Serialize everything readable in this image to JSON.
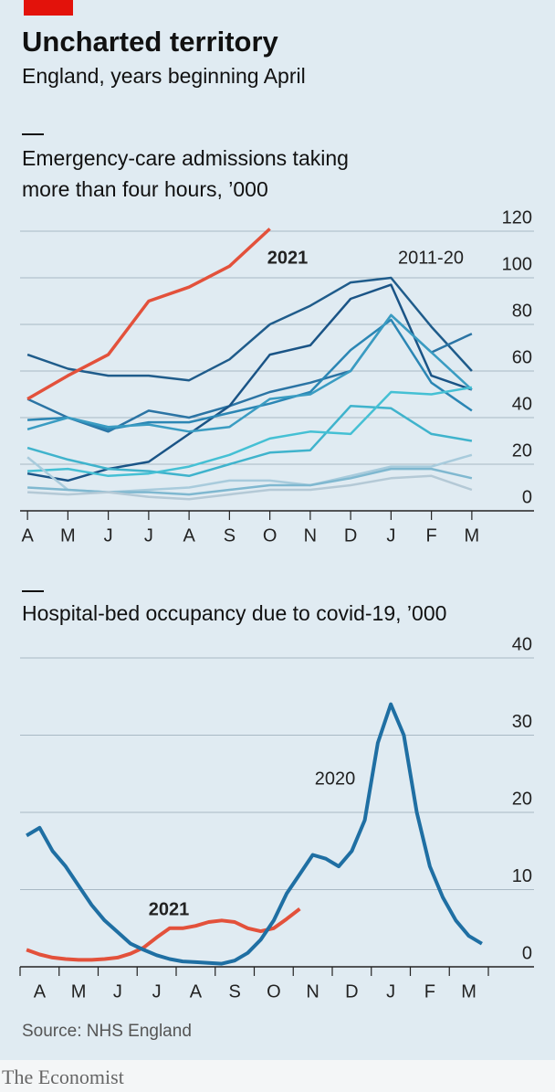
{
  "header": {
    "title": "Uncharted territory",
    "subtitle": "England, years beginning April"
  },
  "chart_data": [
    {
      "type": "line",
      "title": "Emergency-care admissions taking more than four hours, ’000",
      "categories": [
        "A",
        "M",
        "J",
        "J",
        "A",
        "S",
        "O",
        "N",
        "D",
        "J",
        "F",
        "M"
      ],
      "ylim": [
        0,
        120
      ],
      "yticks": [
        0,
        20,
        40,
        60,
        80,
        100,
        120
      ],
      "grid": true,
      "series": [
        {
          "name": "2021",
          "color": "#e3513b",
          "values": [
            48,
            58,
            67,
            90,
            96,
            105,
            121,
            null,
            null,
            null,
            null,
            null
          ]
        },
        {
          "name": "2011-20",
          "lines": [
            {
              "color": "#1f5c8b",
              "values": [
                67,
                61,
                58,
                58,
                56,
                65,
                80,
                88,
                98,
                100,
                79,
                60
              ]
            },
            {
              "color": "#2b74a4",
              "values": [
                48,
                40,
                34,
                43,
                40,
                45,
                51,
                55,
                60,
                84,
                68,
                76
              ]
            },
            {
              "color": "#1a5486",
              "values": [
                16,
                13,
                18,
                21,
                33,
                45,
                67,
                71,
                91,
                97,
                58,
                52
              ]
            },
            {
              "color": "#2b86b4",
              "values": [
                39,
                40,
                35,
                38,
                38,
                42,
                46,
                51,
                69,
                82,
                55,
                43
              ]
            },
            {
              "color": "#3a9cc2",
              "values": [
                35,
                40,
                36,
                37,
                34,
                36,
                48,
                50,
                60,
                84,
                68,
                52
              ]
            },
            {
              "color": "#3fb3cc",
              "values": [
                27,
                22,
                18,
                17,
                15,
                20,
                25,
                26,
                45,
                44,
                33,
                30
              ]
            },
            {
              "color": "#45c0d4",
              "values": [
                17,
                18,
                15,
                16,
                19,
                24,
                31,
                34,
                33,
                51,
                50,
                53
              ]
            },
            {
              "color": "#a8cbdc",
              "values": [
                23,
                9,
                8,
                9,
                10,
                13,
                13,
                11,
                15,
                19,
                19,
                24
              ]
            },
            {
              "color": "#7fb8d0",
              "values": [
                10,
                9,
                8,
                8,
                7,
                9,
                11,
                11,
                14,
                18,
                18,
                14
              ]
            },
            {
              "color": "#b4c9d6",
              "values": [
                8,
                7,
                8,
                6,
                5,
                7,
                9,
                9,
                11,
                14,
                15,
                9
              ]
            }
          ]
        }
      ]
    },
    {
      "type": "line",
      "title": "Hospital-bed occupancy due to covid-19, ’000",
      "categories": [
        null,
        "A",
        null,
        null,
        "M",
        null,
        null,
        "J",
        null,
        null,
        "J",
        null,
        null,
        "A",
        null,
        null,
        "S",
        null,
        null,
        "O",
        null,
        null,
        "N",
        null,
        null,
        "D",
        null,
        null,
        "J",
        null,
        null,
        "F",
        null,
        null,
        "M",
        null
      ],
      "ylim": [
        0,
        40
      ],
      "yticks": [
        0,
        10,
        20,
        30,
        40
      ],
      "grid": true,
      "series": [
        {
          "name": "2020",
          "color": "#1f6fa3",
          "values": [
            17,
            18,
            15,
            13,
            10.5,
            8,
            6,
            4.5,
            3,
            2.2,
            1.5,
            1,
            0.7,
            0.6,
            0.5,
            0.4,
            0.8,
            1.8,
            3.5,
            6,
            9.5,
            12,
            14.5,
            14,
            13,
            15,
            19,
            29,
            34,
            30,
            20,
            13,
            9,
            6,
            4,
            3
          ]
        },
        {
          "name": "2021",
          "color": "#e3513b",
          "values": [
            2.2,
            1.6,
            1.2,
            1,
            0.9,
            0.9,
            1,
            1.2,
            1.7,
            2.5,
            3.8,
            5,
            5,
            5.3,
            5.8,
            6,
            5.8,
            5,
            4.6,
            5,
            6.2,
            7.5,
            null,
            null,
            null,
            null,
            null,
            null,
            null,
            null,
            null,
            null,
            null,
            null,
            null,
            null
          ]
        }
      ]
    }
  ],
  "source": "Source: NHS England",
  "brand": "The Economist"
}
